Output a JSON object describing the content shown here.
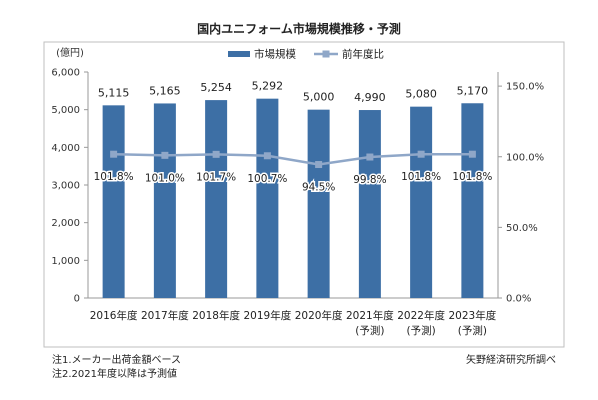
{
  "title": "国内ユニフォーム市場規模推移・予測",
  "notes": [
    "注1.メーカー出荷金額ベース",
    "注2.2021年度以降は予測値"
  ],
  "source": "矢野経済研究所調べ",
  "colors": {
    "bar": "#3d6fa5",
    "line": "#8fa7c8",
    "border": "#bfbfbf"
  },
  "chart_data": {
    "type": "bar",
    "title": "国内ユニフォーム市場規模推移・予測",
    "categories": [
      "2016年度",
      "2017年度",
      "2018年度",
      "2019年度",
      "2020年度",
      "2021年度",
      "2022年度",
      "2023年度"
    ],
    "category_sublabels": [
      "",
      "",
      "",
      "",
      "",
      "(予測)",
      "(予測)",
      "(予測)"
    ],
    "series": [
      {
        "name": "市場規模",
        "type": "bar",
        "axis": "left",
        "values": [
          5115,
          5165,
          5254,
          5292,
          5000,
          4990,
          5080,
          5170
        ],
        "labels": [
          "5,115",
          "5,165",
          "5,254",
          "5,292",
          "5,000",
          "4,990",
          "5,080",
          "5,170"
        ]
      },
      {
        "name": "前年度比",
        "type": "line",
        "axis": "right",
        "values": [
          101.8,
          101.0,
          101.7,
          100.7,
          94.5,
          99.8,
          101.8,
          101.8
        ],
        "labels": [
          "101.8%",
          "101.0%",
          "101.7%",
          "100.7%",
          "94.5%",
          "99.8%",
          "101.8%",
          "101.8%"
        ]
      }
    ],
    "y_left": {
      "label": "(億円)",
      "min": 0,
      "max": 6000,
      "ticks": [
        0,
        1000,
        2000,
        3000,
        4000,
        5000,
        6000
      ],
      "tick_labels": [
        "0",
        "1,000",
        "2,000",
        "3,000",
        "4,000",
        "5,000",
        "6,000"
      ]
    },
    "y_right": {
      "min": 0,
      "max": 160,
      "ticks": [
        0,
        50,
        100,
        150
      ],
      "tick_labels": [
        "0.0%",
        "50.0%",
        "100.0%",
        "150.0%"
      ]
    },
    "grid": false,
    "legend": "top-center"
  }
}
